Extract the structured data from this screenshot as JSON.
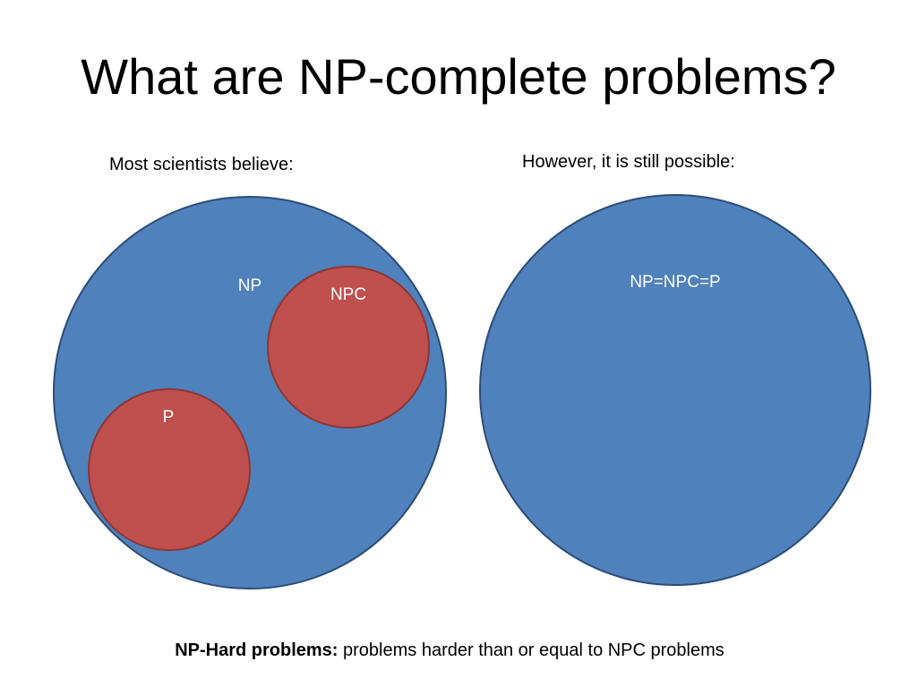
{
  "slide": {
    "title": "What are NP-complete problems?"
  },
  "left_panel": {
    "caption": "Most scientists believe:",
    "sets": [
      {
        "id": "np",
        "label": "NP"
      },
      {
        "id": "npc",
        "label": "NPC"
      },
      {
        "id": "p",
        "label": "P"
      }
    ]
  },
  "right_panel": {
    "caption": "However, it is still possible:",
    "set_label": "NP=NPC=P"
  },
  "footnote": {
    "term": "NP-Hard problems:",
    "definition": " problems harder than or equal to NPC problems"
  },
  "colors": {
    "set_blue_fill": "#4f81bd",
    "set_blue_stroke": "#2c4d75",
    "set_red_fill": "#c0504d",
    "set_red_stroke": "#8c3836",
    "label_text": "#ffffff"
  }
}
